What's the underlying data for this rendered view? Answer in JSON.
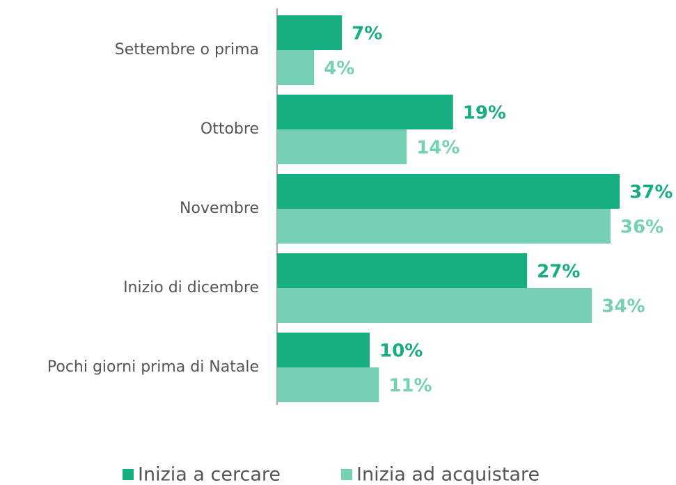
{
  "chart_data": {
    "type": "bar",
    "orientation": "horizontal",
    "categories": [
      "Settembre o prima",
      "Ottobre",
      "Novembre",
      "Inizio di dicembre",
      "Pochi giorni prima di Natale"
    ],
    "series": [
      {
        "name": "Inizia a cercare",
        "color": "#17ae81",
        "values": [
          7,
          19,
          37,
          27,
          10
        ],
        "value_labels": [
          "7%",
          "19%",
          "37%",
          "27%",
          "10%"
        ]
      },
      {
        "name": "Inizia ad acquistare",
        "color": "#76d0b4",
        "values": [
          4,
          14,
          36,
          34,
          11
        ],
        "value_labels": [
          "4%",
          "14%",
          "36%",
          "34%",
          "11%"
        ]
      }
    ],
    "xlim": [
      0,
      43
    ],
    "legend": "bottom"
  }
}
